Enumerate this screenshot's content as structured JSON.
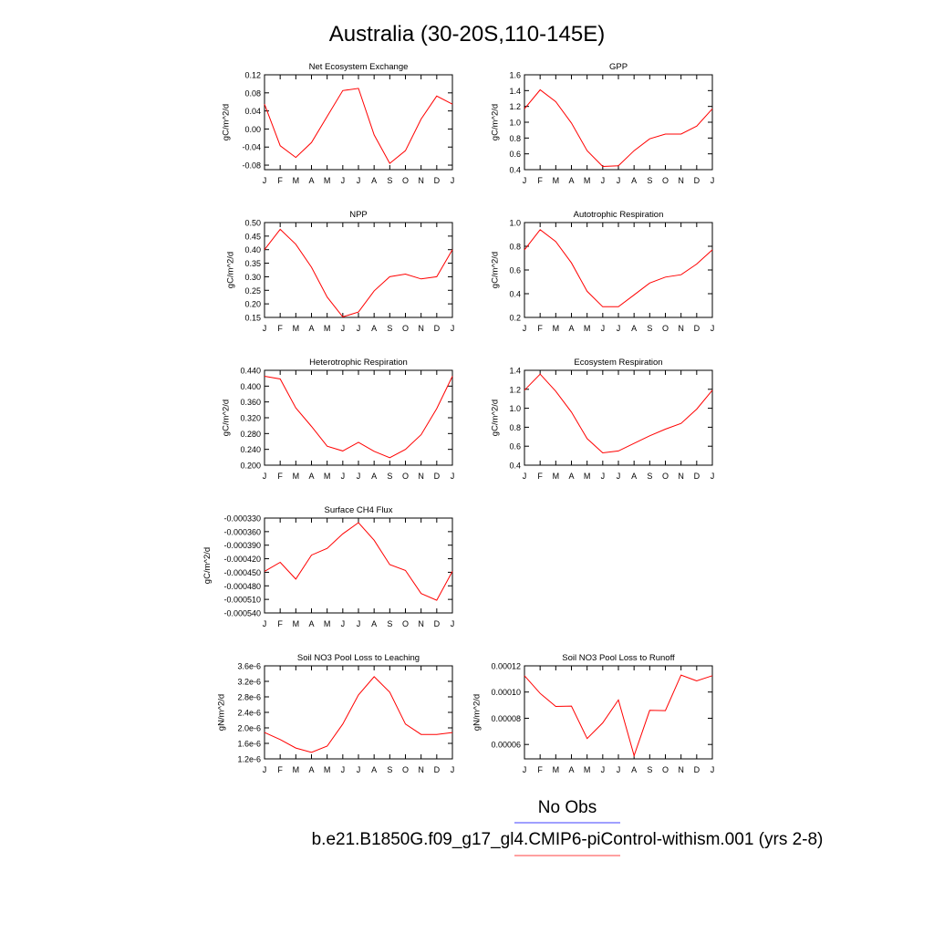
{
  "title": "Australia (30-20S,110-145E)",
  "months": [
    "J",
    "F",
    "M",
    "A",
    "M",
    "J",
    "J",
    "A",
    "S",
    "O",
    "N",
    "D",
    "J"
  ],
  "legend": {
    "obs_label": "No Obs",
    "obs_color": "#8080ff",
    "model_label": "b.e21.B1850G.f09_g17_gl4.CMIP6-piControl-withism.001 (yrs 2-8)",
    "model_color": "#ff8080"
  },
  "line_color": "#ff0000",
  "chart_data": [
    {
      "type": "line",
      "title": "Net Ecosystem Exchange",
      "ylabel": "gC/m^2/d",
      "ylim": [
        -0.09,
        0.12
      ],
      "yticks": [
        "0.12",
        "0.08",
        "0.04",
        "0.00",
        "-0.04",
        "-0.08"
      ],
      "values": [
        0.055,
        -0.037,
        -0.063,
        -0.03,
        0.028,
        0.085,
        0.09,
        -0.013,
        -0.076,
        -0.048,
        0.022,
        0.073,
        0.055
      ]
    },
    {
      "type": "line",
      "title": "GPP",
      "ylabel": "gC/m^2/d",
      "ylim": [
        0.4,
        1.6
      ],
      "yticks": [
        "1.6",
        "1.4",
        "1.2",
        "1.0",
        "0.8",
        "0.6",
        "0.4"
      ],
      "values": [
        1.17,
        1.41,
        1.26,
        0.99,
        0.64,
        0.44,
        0.45,
        0.64,
        0.79,
        0.85,
        0.85,
        0.95,
        1.17
      ]
    },
    {
      "type": "line",
      "title": "NPP",
      "ylabel": "gC/m^2/d",
      "ylim": [
        0.15,
        0.5
      ],
      "yticks": [
        "0.50",
        "0.45",
        "0.40",
        "0.35",
        "0.30",
        "0.25",
        "0.20",
        "0.15"
      ],
      "values": [
        0.4,
        0.475,
        0.42,
        0.335,
        0.225,
        0.152,
        0.17,
        0.248,
        0.3,
        0.31,
        0.292,
        0.3,
        0.4
      ]
    },
    {
      "type": "line",
      "title": "Autotrophic Respiration",
      "ylabel": "gC/m^2/d",
      "ylim": [
        0.2,
        1.0
      ],
      "yticks": [
        "1.0",
        "0.8",
        "0.6",
        "0.4",
        "0.2"
      ],
      "values": [
        0.77,
        0.94,
        0.84,
        0.66,
        0.42,
        0.29,
        0.29,
        0.39,
        0.49,
        0.54,
        0.56,
        0.65,
        0.77
      ]
    },
    {
      "type": "line",
      "title": "Heterotrophic Respiration",
      "ylabel": "gC/m^2/d",
      "ylim": [
        0.2,
        0.44
      ],
      "yticks": [
        "0.440",
        "0.400",
        "0.360",
        "0.320",
        "0.280",
        "0.240",
        "0.200"
      ],
      "values": [
        0.425,
        0.418,
        0.345,
        0.298,
        0.248,
        0.236,
        0.258,
        0.235,
        0.219,
        0.24,
        0.277,
        0.343,
        0.425
      ]
    },
    {
      "type": "line",
      "title": "Ecosystem Respiration",
      "ylabel": "gC/m^2/d",
      "ylim": [
        0.4,
        1.4
      ],
      "yticks": [
        "1.4",
        "1.2",
        "1.0",
        "0.8",
        "0.6",
        "0.4"
      ],
      "values": [
        1.19,
        1.36,
        1.18,
        0.96,
        0.68,
        0.53,
        0.55,
        0.63,
        0.71,
        0.78,
        0.84,
        0.99,
        1.19
      ]
    },
    {
      "type": "line",
      "title": "Surface CH4 Flux",
      "ylabel": "gC/m^2/d",
      "ylim": [
        -0.00054,
        -0.00033
      ],
      "yticks": [
        "-0.000330",
        "-0.000360",
        "-0.000390",
        "-0.000420",
        "-0.000450",
        "-0.000480",
        "-0.000510",
        "-0.000540"
      ],
      "values": [
        -0.000448,
        -0.000428,
        -0.000465,
        -0.000412,
        -0.000397,
        -0.000365,
        -0.00034,
        -0.000379,
        -0.000433,
        -0.000446,
        -0.000497,
        -0.000512,
        -0.000448
      ]
    },
    {
      "type": "line",
      "title": "Soil NO3 Pool Loss to Leaching",
      "ylabel": "gN/m^2/d",
      "ylim": [
        1.2e-06,
        3.6e-06
      ],
      "yticks": [
        "3.6e-6",
        "3.2e-6",
        "2.8e-6",
        "2.4e-6",
        "2.0e-6",
        "1.6e-6",
        "1.2e-6"
      ],
      "values": [
        1.88e-06,
        1.7e-06,
        1.48e-06,
        1.37e-06,
        1.53e-06,
        2.1e-06,
        2.85e-06,
        3.32e-06,
        2.92e-06,
        2.1e-06,
        1.83e-06,
        1.83e-06,
        1.88e-06
      ]
    },
    {
      "type": "line",
      "title": "Soil NO3 Pool Loss to Runoff",
      "ylabel": "gN/m^2/d",
      "ylim": [
        4.9e-05,
        0.00012
      ],
      "yticks": [
        "0.00012",
        "0.00010",
        "0.00008",
        "0.00006"
      ],
      "values": [
        0.0001125,
        9.9e-05,
        8.9e-05,
        8.93e-05,
        6.45e-05,
        7.65e-05,
        9.4e-05,
        5.15e-05,
        8.6e-05,
        8.58e-05,
        0.000113,
        0.0001085,
        0.0001125
      ]
    }
  ]
}
